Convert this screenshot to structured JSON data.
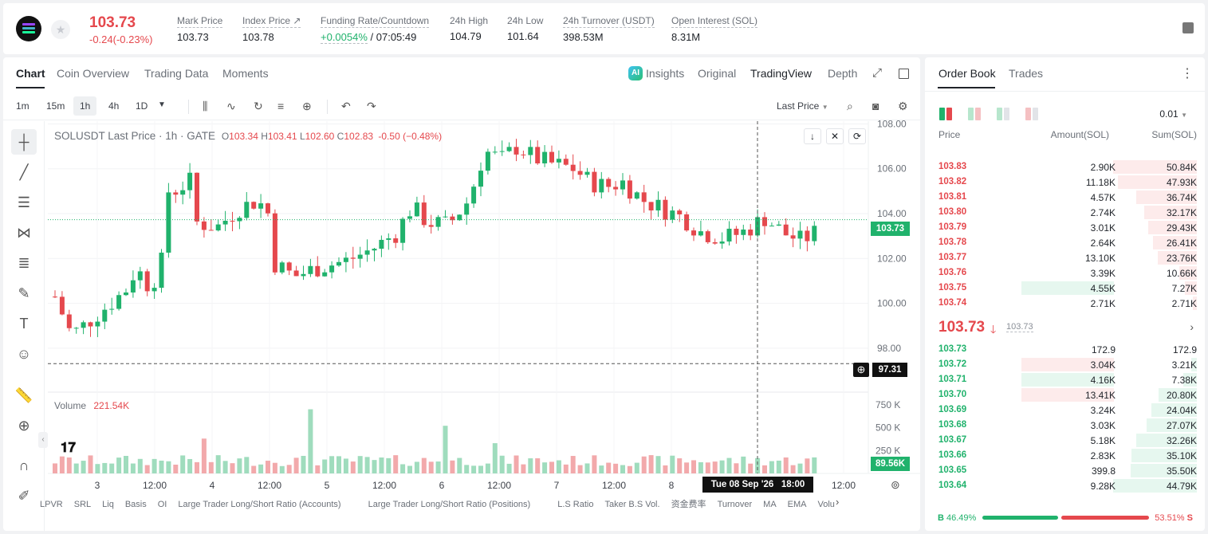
{
  "header": {
    "last_price": "103.73",
    "change": "-0.24(-0.23%)",
    "stats": [
      {
        "label": "Mark Price",
        "value": "103.73"
      },
      {
        "label": "Index Price ↗",
        "value": "103.78"
      },
      {
        "label": "Funding Rate/Countdown",
        "value_green": "+0.0054%",
        "value_rest": " / 07:05:49"
      },
      {
        "label": "24h High",
        "value": "104.79"
      },
      {
        "label": "24h Low",
        "value": "101.64"
      },
      {
        "label": "24h Turnover (USDT)",
        "value": "398.53M"
      },
      {
        "label": "Open Interest (SOL)",
        "value": "8.31M"
      }
    ]
  },
  "chart_panel": {
    "tabs": [
      "Chart",
      "Coin Overview",
      "Trading Data",
      "Moments"
    ],
    "right_tabs": [
      "Insights",
      "Original",
      "TradingView",
      "Depth"
    ],
    "ai_badge": "AI",
    "timeframes": [
      "1m",
      "15m",
      "1h",
      "4h",
      "1D"
    ],
    "price_type": "Last Price",
    "legend": {
      "symbol": "SOLUSDT Last Price · 1h · GATE",
      "o_label": "O",
      "o": "103.34",
      "h_label": "H",
      "h": "103.41",
      "l_label": "L",
      "l": "102.60",
      "c_label": "C",
      "c": "102.83",
      "chg": "-0.50 (−0.48%)"
    },
    "volume_label": "Volume",
    "volume_value": "221.54K",
    "crosshair_price": "97.31",
    "crosshair_time": "Tue 08 Sep '26   18:00",
    "current_price_tag": "103.73",
    "current_volume_tag": "89.56K",
    "price_ticks": [
      "108.00",
      "106.00",
      "104.00",
      "102.00",
      "100.00",
      "98.00"
    ],
    "volume_ticks": [
      "750 K",
      "500 K",
      "250 K"
    ],
    "time_ticks": [
      "3",
      "12:00",
      "4",
      "12:00",
      "5",
      "12:00",
      "6",
      "12:00",
      "7",
      "12:00",
      "8",
      "12:00"
    ],
    "indicators": [
      "LPVR",
      "SRL",
      "Liq",
      "Basis",
      "OI",
      "Large Trader Long/Short Ratio (Accounts)",
      "Large Trader Long/Short Ratio (Positions)",
      "L.S Ratio",
      "Taker B.S Vol.",
      "资金费率",
      "Turnover",
      "MA",
      "EMA",
      "Volu"
    ]
  },
  "chart_data": {
    "type": "candlestick",
    "series": [
      {
        "name": "SOLUSDT Last Price",
        "ohlc_start": 100.3,
        "candles_estimated": true
      }
    ],
    "ylim": [
      97,
      108.3
    ],
    "volume_ylim": [
      0,
      800000
    ]
  },
  "order_book": {
    "tabs": [
      "Order Book",
      "Trades"
    ],
    "tick_size": "0.01",
    "columns": [
      "Price",
      "Amount(SOL)",
      "Sum(SOL)"
    ],
    "asks": [
      {
        "price": "103.83",
        "amount": "2.90K",
        "sum": "50.84K",
        "depth": 1.0
      },
      {
        "price": "103.82",
        "amount": "11.18K",
        "sum": "47.93K",
        "depth": 0.94
      },
      {
        "price": "103.81",
        "amount": "4.57K",
        "sum": "36.74K",
        "depth": 0.72
      },
      {
        "price": "103.80",
        "amount": "2.74K",
        "sum": "32.17K",
        "depth": 0.63
      },
      {
        "price": "103.79",
        "amount": "3.01K",
        "sum": "29.43K",
        "depth": 0.58
      },
      {
        "price": "103.78",
        "amount": "2.64K",
        "sum": "26.41K",
        "depth": 0.52
      },
      {
        "price": "103.77",
        "amount": "13.10K",
        "sum": "23.76K",
        "depth": 0.47
      },
      {
        "price": "103.76",
        "amount": "3.39K",
        "sum": "10.66K",
        "depth": 0.21
      },
      {
        "price": "103.75",
        "amount": "4.55K",
        "sum": "7.27K",
        "depth": 0.14,
        "highlight": "green"
      },
      {
        "price": "103.74",
        "amount": "2.71K",
        "sum": "2.71K",
        "depth": 0.05
      }
    ],
    "mid_price": "103.73",
    "mid_mark": "103.73",
    "bids": [
      {
        "price": "103.73",
        "amount": "172.9",
        "sum": "172.9",
        "depth": 0.004
      },
      {
        "price": "103.72",
        "amount": "3.04K",
        "sum": "3.21K",
        "depth": 0.07,
        "highlight": "red"
      },
      {
        "price": "103.71",
        "amount": "4.16K",
        "sum": "7.38K",
        "depth": 0.16,
        "highlight": "green"
      },
      {
        "price": "103.70",
        "amount": "13.41K",
        "sum": "20.80K",
        "depth": 0.46,
        "highlight": "red"
      },
      {
        "price": "103.69",
        "amount": "3.24K",
        "sum": "24.04K",
        "depth": 0.54
      },
      {
        "price": "103.68",
        "amount": "3.03K",
        "sum": "27.07K",
        "depth": 0.6
      },
      {
        "price": "103.67",
        "amount": "5.18K",
        "sum": "32.26K",
        "depth": 0.72
      },
      {
        "price": "103.66",
        "amount": "2.83K",
        "sum": "35.10K",
        "depth": 0.78
      },
      {
        "price": "103.65",
        "amount": "399.8",
        "sum": "35.50K",
        "depth": 0.79
      },
      {
        "price": "103.64",
        "amount": "9.28K",
        "sum": "44.79K",
        "depth": 1.0
      }
    ],
    "buy_label": "B",
    "buy_pct": "46.49%",
    "sell_pct": "53.51%",
    "sell_label": "S"
  },
  "colors": {
    "up": "#20b26c",
    "down": "#e5484d",
    "up_light": "#e6f7ef",
    "down_light": "#fdebeb"
  }
}
